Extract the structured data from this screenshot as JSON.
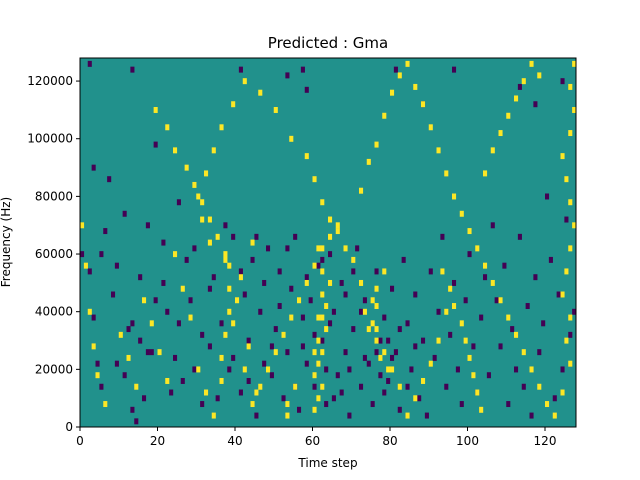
{
  "chart_data": {
    "type": "heatmap",
    "title": "Predicted : Gma",
    "xlabel": "Time step",
    "ylabel": "Frequency (Hz)",
    "xlim": [
      0,
      128
    ],
    "ylim": [
      0,
      128000
    ],
    "xticks": [
      0,
      20,
      40,
      60,
      80,
      100,
      120
    ],
    "yticks": [
      0,
      20000,
      40000,
      60000,
      80000,
      100000,
      120000
    ],
    "time_steps": 128,
    "frequency_bins": 128,
    "grid": false,
    "legend": "none",
    "value_levels": [
      -1,
      0,
      1
    ],
    "colors": {
      "background_level": "#21918c",
      "low_level": "#440154",
      "high_level": "#fde725",
      "axes": "#000000"
    },
    "note_cells_low": [
      [
        2,
        126
      ],
      [
        13,
        124
      ],
      [
        41,
        124
      ],
      [
        53,
        122
      ],
      [
        57,
        124
      ],
      [
        58,
        117
      ],
      [
        81,
        124
      ],
      [
        88,
        112
      ],
      [
        96,
        124
      ],
      [
        113,
        118
      ],
      [
        117,
        112
      ],
      [
        124,
        120
      ],
      [
        0,
        60
      ],
      [
        2,
        54
      ],
      [
        3,
        38
      ],
      [
        4,
        22
      ],
      [
        5,
        14
      ],
      [
        6,
        68
      ],
      [
        8,
        46
      ],
      [
        9,
        56
      ],
      [
        11,
        18
      ],
      [
        12,
        34
      ],
      [
        13,
        6
      ],
      [
        14,
        2
      ],
      [
        15,
        30
      ],
      [
        16,
        10
      ],
      [
        17,
        70
      ],
      [
        18,
        26
      ],
      [
        19,
        98
      ],
      [
        21,
        50
      ],
      [
        22,
        40
      ],
      [
        24,
        24
      ],
      [
        25,
        78
      ],
      [
        26,
        16
      ],
      [
        28,
        44
      ],
      [
        29,
        62
      ],
      [
        31,
        8
      ],
      [
        33,
        28
      ],
      [
        34,
        52
      ],
      [
        36,
        36
      ],
      [
        38,
        20
      ],
      [
        39,
        66
      ],
      [
        41,
        12
      ],
      [
        42,
        46
      ],
      [
        43,
        30
      ],
      [
        44,
        58
      ],
      [
        45,
        4
      ],
      [
        46,
        40
      ],
      [
        47,
        22
      ],
      [
        48,
        62
      ],
      [
        49,
        18
      ],
      [
        50,
        34
      ],
      [
        51,
        54
      ],
      [
        52,
        10
      ],
      [
        53,
        26
      ],
      [
        54,
        48
      ],
      [
        55,
        66
      ],
      [
        56,
        6
      ],
      [
        57,
        38
      ],
      [
        58,
        22
      ],
      [
        59,
        44
      ],
      [
        60,
        14
      ],
      [
        61,
        56
      ],
      [
        62,
        30
      ],
      [
        63,
        8
      ],
      [
        64,
        60
      ],
      [
        65,
        40
      ],
      [
        66,
        18
      ],
      [
        67,
        50
      ],
      [
        68,
        26
      ],
      [
        69,
        4
      ],
      [
        70,
        34
      ],
      [
        71,
        62
      ],
      [
        72,
        14
      ],
      [
        73,
        44
      ],
      [
        74,
        22
      ],
      [
        75,
        8
      ],
      [
        76,
        54
      ],
      [
        77,
        30
      ],
      [
        78,
        38
      ],
      [
        79,
        16
      ],
      [
        80,
        48
      ],
      [
        81,
        26
      ],
      [
        82,
        6
      ],
      [
        83,
        58
      ],
      [
        84,
        36
      ],
      [
        85,
        20
      ],
      [
        86,
        46
      ],
      [
        87,
        10
      ],
      [
        88,
        30
      ],
      [
        89,
        4
      ],
      [
        90,
        54
      ],
      [
        91,
        24
      ],
      [
        92,
        40
      ],
      [
        93,
        66
      ],
      [
        94,
        14
      ],
      [
        95,
        32
      ],
      [
        96,
        50
      ],
      [
        97,
        20
      ],
      [
        98,
        8
      ],
      [
        99,
        44
      ],
      [
        100,
        60
      ],
      [
        101,
        28
      ],
      [
        102,
        12
      ],
      [
        103,
        38
      ],
      [
        104,
        52
      ],
      [
        105,
        18
      ],
      [
        106,
        70
      ],
      [
        107,
        44
      ],
      [
        108,
        28
      ],
      [
        109,
        56
      ],
      [
        110,
        8
      ],
      [
        111,
        34
      ],
      [
        112,
        20
      ],
      [
        113,
        66
      ],
      [
        114,
        14
      ],
      [
        115,
        42
      ],
      [
        116,
        4
      ],
      [
        117,
        52
      ],
      [
        118,
        26
      ],
      [
        119,
        36
      ],
      [
        120,
        80
      ],
      [
        121,
        58
      ],
      [
        122,
        10
      ],
      [
        123,
        46
      ],
      [
        124,
        20
      ],
      [
        125,
        72
      ],
      [
        126,
        32
      ],
      [
        127,
        40
      ],
      [
        76,
        26
      ],
      [
        77,
        18
      ],
      [
        78,
        12
      ],
      [
        79,
        30
      ],
      [
        80,
        24
      ],
      [
        82,
        34
      ],
      [
        84,
        14
      ],
      [
        86,
        28
      ],
      [
        72,
        40
      ],
      [
        73,
        24
      ],
      [
        67,
        12
      ],
      [
        68,
        46
      ],
      [
        69,
        20
      ],
      [
        70,
        54
      ],
      [
        58,
        52
      ],
      [
        60,
        32
      ],
      [
        62,
        58
      ],
      [
        63,
        20
      ],
      [
        64,
        36
      ],
      [
        65,
        10
      ],
      [
        57,
        28
      ],
      [
        55,
        14
      ],
      [
        53,
        62
      ],
      [
        51,
        42
      ],
      [
        49,
        28
      ],
      [
        47,
        50
      ],
      [
        45,
        66
      ],
      [
        43,
        16
      ],
      [
        41,
        54
      ],
      [
        39,
        24
      ],
      [
        37,
        70
      ],
      [
        35,
        10
      ],
      [
        33,
        48
      ],
      [
        31,
        32
      ],
      [
        29,
        20
      ],
      [
        27,
        58
      ],
      [
        25,
        36
      ],
      [
        23,
        12
      ],
      [
        21,
        64
      ],
      [
        19,
        44
      ],
      [
        17,
        26
      ],
      [
        15,
        52
      ],
      [
        13,
        36
      ],
      [
        11,
        74
      ],
      [
        9,
        22
      ],
      [
        7,
        86
      ],
      [
        5,
        60
      ],
      [
        3,
        90
      ]
    ],
    "note_cells_high": [
      [
        53,
        8
      ],
      [
        53,
        4
      ],
      [
        55,
        14
      ],
      [
        60,
        6
      ],
      [
        61,
        10
      ],
      [
        62,
        14
      ],
      [
        61,
        22
      ],
      [
        61,
        30
      ],
      [
        62,
        26
      ],
      [
        63,
        34
      ],
      [
        62,
        38
      ],
      [
        63,
        42
      ],
      [
        64,
        50
      ],
      [
        62,
        54
      ],
      [
        61,
        62
      ],
      [
        64,
        66
      ],
      [
        66,
        70
      ],
      [
        60,
        18
      ],
      [
        60,
        26
      ],
      [
        61,
        38
      ],
      [
        62,
        46
      ],
      [
        76,
        30
      ],
      [
        75,
        36
      ],
      [
        76,
        42
      ],
      [
        74,
        34
      ],
      [
        77,
        24
      ],
      [
        73,
        40
      ],
      [
        75,
        44
      ],
      [
        76,
        48
      ],
      [
        72,
        50
      ],
      [
        78,
        54
      ],
      [
        79,
        20
      ],
      [
        38,
        48
      ],
      [
        38,
        40
      ],
      [
        37,
        32
      ],
      [
        36,
        24
      ],
      [
        38,
        56
      ],
      [
        37,
        60
      ],
      [
        39,
        36
      ],
      [
        40,
        44
      ],
      [
        41,
        52
      ],
      [
        42,
        20
      ],
      [
        43,
        28
      ],
      [
        44,
        64
      ],
      [
        45,
        12
      ],
      [
        33,
        64
      ],
      [
        31,
        72
      ],
      [
        30,
        80
      ],
      [
        32,
        88
      ],
      [
        34,
        96
      ],
      [
        36,
        104
      ],
      [
        39,
        112
      ],
      [
        42,
        120
      ],
      [
        46,
        116
      ],
      [
        50,
        110
      ],
      [
        54,
        100
      ],
      [
        58,
        94
      ],
      [
        60,
        86
      ],
      [
        62,
        78
      ],
      [
        64,
        72
      ],
      [
        66,
        68
      ],
      [
        68,
        62
      ],
      [
        70,
        58
      ],
      [
        72,
        82
      ],
      [
        74,
        92
      ],
      [
        76,
        98
      ],
      [
        78,
        108
      ],
      [
        80,
        116
      ],
      [
        82,
        122
      ],
      [
        84,
        126
      ],
      [
        86,
        118
      ],
      [
        88,
        112
      ],
      [
        90,
        104
      ],
      [
        92,
        96
      ],
      [
        94,
        88
      ],
      [
        96,
        80
      ],
      [
        98,
        74
      ],
      [
        100,
        68
      ],
      [
        102,
        62
      ],
      [
        104,
        56
      ],
      [
        106,
        50
      ],
      [
        108,
        44
      ],
      [
        110,
        38
      ],
      [
        112,
        32
      ],
      [
        114,
        26
      ],
      [
        116,
        20
      ],
      [
        118,
        14
      ],
      [
        120,
        8
      ],
      [
        122,
        4
      ],
      [
        124,
        12
      ],
      [
        126,
        22
      ],
      [
        125,
        30
      ],
      [
        126,
        38
      ],
      [
        124,
        46
      ],
      [
        125,
        54
      ],
      [
        126,
        62
      ],
      [
        127,
        70
      ],
      [
        126,
        78
      ],
      [
        125,
        86
      ],
      [
        124,
        94
      ],
      [
        126,
        102
      ],
      [
        127,
        110
      ],
      [
        126,
        118
      ],
      [
        127,
        126
      ],
      [
        0,
        70
      ],
      [
        1,
        56
      ],
      [
        2,
        40
      ],
      [
        3,
        28
      ],
      [
        4,
        18
      ],
      [
        6,
        8
      ],
      [
        10,
        32
      ],
      [
        12,
        24
      ],
      [
        14,
        14
      ],
      [
        16,
        44
      ],
      [
        18,
        36
      ],
      [
        20,
        26
      ],
      [
        22,
        16
      ],
      [
        24,
        60
      ],
      [
        26,
        48
      ],
      [
        28,
        38
      ],
      [
        30,
        20
      ],
      [
        32,
        12
      ],
      [
        34,
        4
      ],
      [
        36,
        16
      ],
      [
        19,
        110
      ],
      [
        22,
        104
      ],
      [
        24,
        96
      ],
      [
        27,
        90
      ],
      [
        29,
        84
      ],
      [
        31,
        78
      ],
      [
        33,
        72
      ],
      [
        35,
        66
      ],
      [
        37,
        58
      ],
      [
        93,
        54
      ],
      [
        95,
        48
      ],
      [
        96,
        42
      ],
      [
        98,
        36
      ],
      [
        99,
        30
      ],
      [
        100,
        24
      ],
      [
        101,
        18
      ],
      [
        102,
        12
      ],
      [
        103,
        6
      ],
      [
        94,
        40
      ],
      [
        92,
        30
      ],
      [
        90,
        22
      ],
      [
        88,
        16
      ],
      [
        86,
        10
      ],
      [
        84,
        4
      ],
      [
        82,
        14
      ],
      [
        80,
        20
      ],
      [
        78,
        26
      ],
      [
        76,
        34
      ],
      [
        44,
        8
      ],
      [
        46,
        14
      ],
      [
        48,
        20
      ],
      [
        50,
        26
      ],
      [
        52,
        32
      ],
      [
        54,
        38
      ],
      [
        56,
        44
      ],
      [
        58,
        50
      ],
      [
        60,
        56
      ],
      [
        62,
        62
      ],
      [
        104,
        88
      ],
      [
        106,
        96
      ],
      [
        108,
        102
      ],
      [
        110,
        108
      ],
      [
        112,
        114
      ],
      [
        114,
        120
      ],
      [
        116,
        126
      ],
      [
        118,
        122
      ]
    ]
  }
}
